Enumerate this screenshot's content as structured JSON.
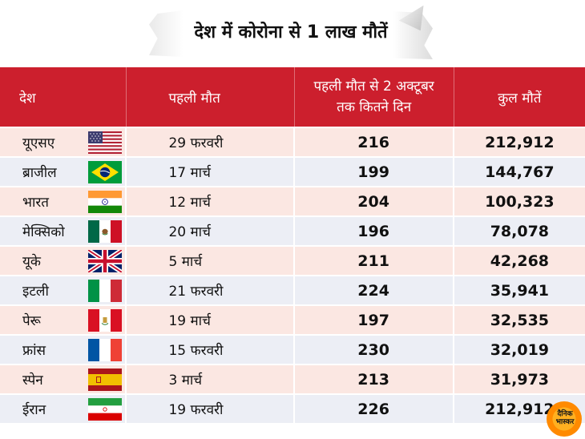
{
  "title": "देश में कोरोना से 1 लाख मौतें",
  "headers": {
    "country": "देश",
    "first_death": "पहली मौत",
    "days_line1": "पहली मौत से 2 अक्टूबर",
    "days_line2": "तक कितने दिन",
    "total_deaths": "कुल मौतें"
  },
  "rows": [
    {
      "country": "यूएसए",
      "flag": "usa-flag-icon",
      "first_death": "29 फरवरी",
      "days": "216",
      "total": "212,912"
    },
    {
      "country": "ब्राजील",
      "flag": "brazil-flag-icon",
      "first_death": "17 मार्च",
      "days": "199",
      "total": "144,767"
    },
    {
      "country": "भारत",
      "flag": "india-flag-icon",
      "first_death": "12 मार्च",
      "days": "204",
      "total": "100,323"
    },
    {
      "country": "मेक्सिको",
      "flag": "mexico-flag-icon",
      "first_death": "20 मार्च",
      "days": "196",
      "total": "78,078"
    },
    {
      "country": "यूके",
      "flag": "uk-flag-icon",
      "first_death": "5 मार्च",
      "days": "211",
      "total": "42,268"
    },
    {
      "country": "इटली",
      "flag": "italy-flag-icon",
      "first_death": "21 फरवरी",
      "days": "224",
      "total": "35,941"
    },
    {
      "country": "पेरू",
      "flag": "peru-flag-icon",
      "first_death": "19 मार्च",
      "days": "197",
      "total": "32,535"
    },
    {
      "country": "फ्रांस",
      "flag": "france-flag-icon",
      "first_death": "15 फरवरी",
      "days": "230",
      "total": "32,019"
    },
    {
      "country": "स्पेन",
      "flag": "spain-flag-icon",
      "first_death": "3 मार्च",
      "days": "213",
      "total": "31,973"
    },
    {
      "country": "ईरान",
      "flag": "iran-flag-icon",
      "first_death": "19 फरवरी",
      "days": "226",
      "total": "212,912"
    }
  ],
  "logo": {
    "line1": "दैनिक",
    "line2": "भास्कर"
  },
  "colors": {
    "header_red": "#cc1f2d",
    "row_pink": "#fbe7e2",
    "row_lavender": "#eceef5",
    "logo_orange": "#ff9a10"
  }
}
